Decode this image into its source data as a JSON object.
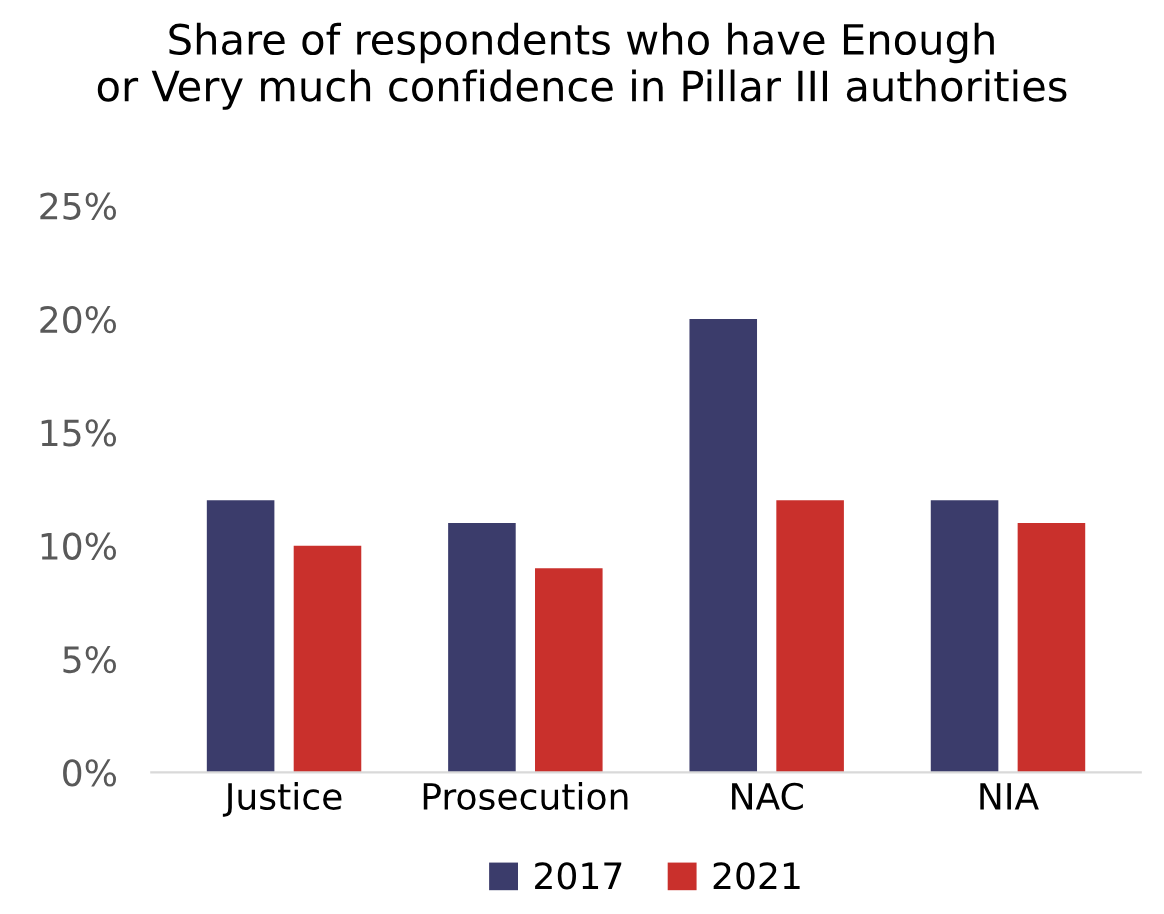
{
  "chart_data": {
    "type": "bar",
    "title": "Share of respondents who have Enough\nor Very much confidence in Pillar III authorities",
    "categories": [
      "Justice",
      "Prosecution",
      "NAC",
      "NIA"
    ],
    "series": [
      {
        "name": "2017",
        "color": "#3b3c6b",
        "values": [
          12,
          11,
          20,
          12
        ]
      },
      {
        "name": "2021",
        "color": "#c9302c",
        "values": [
          10,
          9,
          12,
          11
        ]
      }
    ],
    "ylim": [
      0,
      25
    ],
    "yticks": [
      {
        "value": 0,
        "label": "0%"
      },
      {
        "value": 5,
        "label": "5%"
      },
      {
        "value": 10,
        "label": "10%"
      },
      {
        "value": 15,
        "label": "15%"
      },
      {
        "value": 20,
        "label": "20%"
      },
      {
        "value": 25,
        "label": "25%"
      }
    ],
    "grid": false,
    "legend": "bottom"
  }
}
